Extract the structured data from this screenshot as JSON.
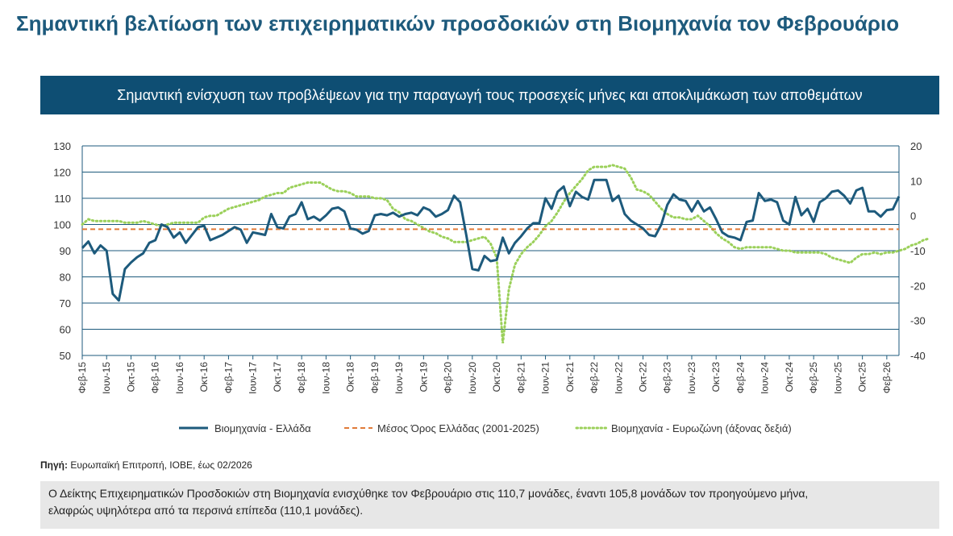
{
  "title": "Σημαντική βελτίωση των επιχειρηματικών προσδοκιών στη Βιομηχανία τον Φεβρουάριο",
  "banner": "Σημαντική ενίσχυση των προβλέψεων για την παραγωγή τους προσεχείς μήνες και αποκλιμάκωση των αποθεμάτων",
  "colors": {
    "greece": "#1d5a7c",
    "average": "#e07b39",
    "eurozone": "#9bd05a",
    "grid": "#1d5a7c",
    "banner": "#0e4e73"
  },
  "chart_data": {
    "type": "line",
    "x_tick_labels": [
      "Φεβ-15",
      "Ιουν-15",
      "Οκτ-15",
      "Φεβ-16",
      "Ιουν-16",
      "Οκτ-16",
      "Φεβ-17",
      "Ιουν-17",
      "Οκτ-17",
      "Φεβ-18",
      "Ιουν-18",
      "Οκτ-18",
      "Φεβ-19",
      "Ιουν-19",
      "Οκτ-19",
      "Φεβ-20",
      "Ιουν-20",
      "Οκτ-20",
      "Φεβ-21",
      "Ιουν-21",
      "Οκτ-21",
      "Φεβ-22",
      "Ιουν-22",
      "Οκτ-22",
      "Φεβ-23",
      "Ιουν-23",
      "Οκτ-23",
      "Φεβ-24",
      "Ιουν-24",
      "Οκτ-24",
      "Φεβ-25",
      "Ιουν-25",
      "Οκτ-25",
      "Φεβ-26"
    ],
    "y_left": {
      "min": 50,
      "max": 130,
      "step": 10,
      "ticks": [
        "130",
        "120",
        "110",
        "100",
        "90",
        "80",
        "70",
        "60",
        "50"
      ]
    },
    "y_right": {
      "min": -40,
      "max": 20,
      "step": 10,
      "ticks": [
        "20",
        "10",
        "0",
        "-10",
        "-20",
        "-30",
        "-40"
      ]
    },
    "series": [
      {
        "name": "Βιομηχανία  - Ελλάδα",
        "axis": "left",
        "style": "solid",
        "values": [
          91,
          93.5,
          89,
          92,
          90,
          73.5,
          71,
          83,
          85.5,
          87.5,
          89,
          93,
          94,
          100,
          99,
          95,
          97,
          93,
          96,
          99,
          99.5,
          94,
          95,
          96,
          97.5,
          99,
          98,
          93,
          97,
          96.5,
          96,
          104,
          99,
          98.5,
          103,
          104,
          108.5,
          102,
          103,
          101.5,
          103.5,
          106,
          106.5,
          105,
          98.5,
          98,
          96.5,
          97.5,
          103.5,
          104,
          103.5,
          104.5,
          103,
          104,
          104.5,
          103.5,
          106.5,
          105.5,
          103,
          104,
          105.5,
          111,
          108.5,
          96,
          83,
          82.5,
          88,
          86,
          86.5,
          95,
          89,
          93,
          95.5,
          98.5,
          100.5,
          100.5,
          110,
          106,
          112.5,
          114.5,
          107,
          112.5,
          110.5,
          109.5,
          117,
          117,
          117,
          109,
          111,
          104,
          101.5,
          100,
          98.5,
          96,
          95.5,
          100,
          107.5,
          111.5,
          109.5,
          109,
          105,
          109,
          105,
          106.5,
          102,
          97,
          95.5,
          95,
          94,
          101,
          101.5,
          112,
          109,
          109.5,
          108.5,
          101.5,
          100,
          110.5,
          103.5,
          106,
          101,
          108.5,
          110,
          112.5,
          113,
          111,
          108,
          113,
          114,
          105,
          105,
          103,
          105.5,
          105.8,
          110.7
        ]
      },
      {
        "name": "Μέσος Όρος Ελλάδας (2001-2025)",
        "axis": "left",
        "style": "dashed",
        "value": 98.2
      },
      {
        "name": "Βιομηχανία - Ευρωζώνη (άξονας δεξιά)",
        "axis": "right",
        "style": "dotted",
        "values": [
          -2.5,
          -1,
          -1.5,
          -1.5,
          -1.5,
          -1.5,
          -1.5,
          -2,
          -2,
          -2,
          -1.5,
          -2,
          -2.5,
          -3,
          -2.5,
          -2,
          -2,
          -2,
          -2,
          -2,
          -0.5,
          0,
          0,
          1,
          2,
          2.5,
          3,
          3.5,
          4,
          4.5,
          5.5,
          6,
          6.5,
          6.5,
          8,
          8.5,
          9,
          9.5,
          9.5,
          9.5,
          8.5,
          7.5,
          7,
          7,
          6.5,
          5.5,
          5.5,
          5.5,
          5,
          5,
          4.5,
          2,
          1,
          -1,
          -1.5,
          -2.5,
          -3.5,
          -4.5,
          -5,
          -6,
          -6.5,
          -7.5,
          -7.5,
          -7.5,
          -7,
          -6.5,
          -6,
          -8,
          -12,
          -36.5,
          -21,
          -14,
          -11,
          -9,
          -7.5,
          -5.5,
          -3,
          -1.5,
          1,
          4,
          6.5,
          8.5,
          10.5,
          13,
          14,
          14,
          14,
          14.5,
          14,
          13.5,
          11,
          7.5,
          7,
          6,
          4,
          2,
          0.5,
          -0.5,
          -0.5,
          -1,
          -1,
          0,
          -1.5,
          -3,
          -5,
          -6.5,
          -7.5,
          -9,
          -9.5,
          -9,
          -9,
          -9,
          -9,
          -9,
          -9.5,
          -10,
          -10,
          -10.5,
          -10.5,
          -10.5,
          -10.5,
          -10.5,
          -11,
          -12,
          -12.5,
          -13,
          -13.5,
          -12,
          -11,
          -11,
          -10.5,
          -11,
          -10.5,
          -10.5,
          -10,
          -9.5,
          -8.5,
          -8,
          -7,
          -6.5
        ]
      }
    ]
  },
  "legend": {
    "greece": "Βιομηχανία  - Ελλάδα",
    "average": "Μέσος Όρος Ελλάδας (2001-2025)",
    "eurozone": "Βιομηχανία - Ευρωζώνη (άξονας δεξιά)"
  },
  "source": {
    "label": "Πηγή:",
    "text": " Ευρωπαϊκή Επιτροπή, ΙΟΒΕ, έως 02/2026"
  },
  "note": {
    "line1": "Ο Δείκτης Επιχειρηματικών Προσδοκιών στη Βιομηχανία ενισχύθηκε τον Φεβρουάριο στις 110,7 μονάδες, έναντι 105,8 μονάδων τον προηγούμενο μήνα,",
    "line2": "ελαφρώς υψηλότερα από τα περσινά επίπεδα (110,1 μονάδες)."
  }
}
